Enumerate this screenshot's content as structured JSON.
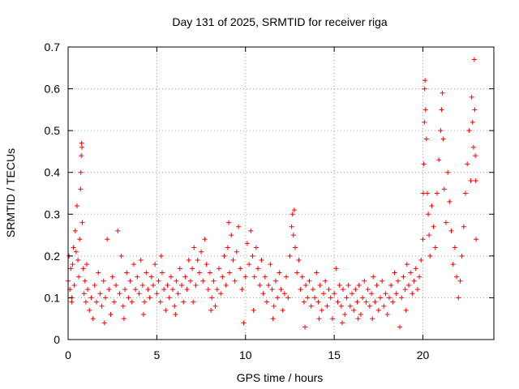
{
  "chart_data": {
    "type": "scatter",
    "title": "Day 131 of 2025, SRMTID for receiver riga",
    "xlabel": "GPS time / hours",
    "ylabel": "SRMTID / TECUs",
    "xlim": [
      0,
      24
    ],
    "ylim": [
      0,
      0.7
    ],
    "x_ticks": [
      0,
      5,
      10,
      15,
      20
    ],
    "x_tick_labels": [
      "0",
      "5",
      "10",
      "15",
      "20"
    ],
    "y_ticks": [
      0,
      0.1,
      0.2,
      0.3,
      0.4,
      0.5,
      0.6,
      0.7
    ],
    "y_tick_labels": [
      "0",
      "0.1",
      "0.2",
      "0.3",
      "0.4",
      "0.5",
      "0.6",
      "0.7"
    ],
    "grid": true,
    "marker": "+",
    "color": "#ff0000",
    "series": [
      {
        "name": "SRMTID",
        "points": [
          [
            0.0,
            0.14
          ],
          [
            0.05,
            0.2
          ],
          [
            0.1,
            0.12
          ],
          [
            0.15,
            0.17
          ],
          [
            0.2,
            0.1
          ],
          [
            0.25,
            0.18
          ],
          [
            0.3,
            0.22
          ],
          [
            0.35,
            0.13
          ],
          [
            0.4,
            0.26
          ],
          [
            0.45,
            0.21
          ],
          [
            0.5,
            0.32
          ],
          [
            0.55,
            0.19
          ],
          [
            0.6,
            0.15
          ],
          [
            0.65,
            0.24
          ],
          [
            0.7,
            0.36
          ],
          [
            0.72,
            0.4
          ],
          [
            0.74,
            0.44
          ],
          [
            0.76,
            0.47
          ],
          [
            0.78,
            0.46
          ],
          [
            0.8,
            0.28
          ],
          [
            0.85,
            0.17
          ],
          [
            0.9,
            0.11
          ],
          [
            0.95,
            0.14
          ],
          [
            1.0,
            0.09
          ],
          [
            1.1,
            0.12
          ],
          [
            1.2,
            0.07
          ],
          [
            1.3,
            0.1
          ],
          [
            1.4,
            0.05
          ],
          [
            1.5,
            0.13
          ],
          [
            1.6,
            0.09
          ],
          [
            1.7,
            0.16
          ],
          [
            1.8,
            0.11
          ],
          [
            1.9,
            0.08
          ],
          [
            2.0,
            0.14
          ],
          [
            2.1,
            0.1
          ],
          [
            2.2,
            0.24
          ],
          [
            2.3,
            0.12
          ],
          [
            2.4,
            0.06
          ],
          [
            2.5,
            0.15
          ],
          [
            2.6,
            0.09
          ],
          [
            2.7,
            0.13
          ],
          [
            2.8,
            0.26
          ],
          [
            2.9,
            0.11
          ],
          [
            3.0,
            0.2
          ],
          [
            3.1,
            0.08
          ],
          [
            3.2,
            0.12
          ],
          [
            3.3,
            0.16
          ],
          [
            3.4,
            0.1
          ],
          [
            3.5,
            0.14
          ],
          [
            3.6,
            0.09
          ],
          [
            3.7,
            0.18
          ],
          [
            3.8,
            0.12
          ],
          [
            3.9,
            0.15
          ],
          [
            4.0,
            0.11
          ],
          [
            4.1,
            0.19
          ],
          [
            4.2,
            0.13
          ],
          [
            4.3,
            0.09
          ],
          [
            4.4,
            0.16
          ],
          [
            4.5,
            0.12
          ],
          [
            4.6,
            0.1
          ],
          [
            4.7,
            0.15
          ],
          [
            4.8,
            0.13
          ],
          [
            4.9,
            0.18
          ],
          [
            5.0,
            0.11
          ],
          [
            5.1,
            0.14
          ],
          [
            5.2,
            0.09
          ],
          [
            5.3,
            0.16
          ],
          [
            5.4,
            0.12
          ],
          [
            5.5,
            0.07
          ],
          [
            5.6,
            0.13
          ],
          [
            5.7,
            0.1
          ],
          [
            5.8,
            0.15
          ],
          [
            5.9,
            0.12
          ],
          [
            6.0,
            0.08
          ],
          [
            6.1,
            0.14
          ],
          [
            6.2,
            0.11
          ],
          [
            6.3,
            0.17
          ],
          [
            6.4,
            0.13
          ],
          [
            6.5,
            0.09
          ],
          [
            6.6,
            0.15
          ],
          [
            6.7,
            0.12
          ],
          [
            6.8,
            0.19
          ],
          [
            6.9,
            0.14
          ],
          [
            7.0,
            0.17
          ],
          [
            7.1,
            0.22
          ],
          [
            7.2,
            0.13
          ],
          [
            7.3,
            0.19
          ],
          [
            7.4,
            0.16
          ],
          [
            7.5,
            0.21
          ],
          [
            7.6,
            0.14
          ],
          [
            7.7,
            0.24
          ],
          [
            7.8,
            0.18
          ],
          [
            7.9,
            0.12
          ],
          [
            8.0,
            0.16
          ],
          [
            8.1,
            0.1
          ],
          [
            8.2,
            0.14
          ],
          [
            8.3,
            0.08
          ],
          [
            8.4,
            0.12
          ],
          [
            8.5,
            0.17
          ],
          [
            8.6,
            0.11
          ],
          [
            8.7,
            0.15
          ],
          [
            8.8,
            0.2
          ],
          [
            8.9,
            0.13
          ],
          [
            9.0,
            0.22
          ],
          [
            9.05,
            0.28
          ],
          [
            9.1,
            0.16
          ],
          [
            9.2,
            0.25
          ],
          [
            9.3,
            0.19
          ],
          [
            9.4,
            0.14
          ],
          [
            9.5,
            0.21
          ],
          [
            9.6,
            0.27
          ],
          [
            9.7,
            0.17
          ],
          [
            9.8,
            0.12
          ],
          [
            9.9,
            0.04
          ],
          [
            10.0,
            0.15
          ],
          [
            10.1,
            0.23
          ],
          [
            10.2,
            0.18
          ],
          [
            10.3,
            0.26
          ],
          [
            10.4,
            0.2
          ],
          [
            10.5,
            0.15
          ],
          [
            10.6,
            0.22
          ],
          [
            10.7,
            0.17
          ],
          [
            10.8,
            0.13
          ],
          [
            10.9,
            0.19
          ],
          [
            11.0,
            0.11
          ],
          [
            11.1,
            0.15
          ],
          [
            11.2,
            0.09
          ],
          [
            11.3,
            0.13
          ],
          [
            11.4,
            0.18
          ],
          [
            11.5,
            0.12
          ],
          [
            11.6,
            0.08
          ],
          [
            11.7,
            0.14
          ],
          [
            11.8,
            0.1
          ],
          [
            11.9,
            0.16
          ],
          [
            12.0,
            0.12
          ],
          [
            12.1,
            0.07
          ],
          [
            12.2,
            0.11
          ],
          [
            12.3,
            0.15
          ],
          [
            12.4,
            0.1
          ],
          [
            12.5,
            0.2
          ],
          [
            12.6,
            0.27
          ],
          [
            12.65,
            0.3
          ],
          [
            12.7,
            0.25
          ],
          [
            12.75,
            0.31
          ],
          [
            12.8,
            0.22
          ],
          [
            12.9,
            0.16
          ],
          [
            13.0,
            0.19
          ],
          [
            13.1,
            0.12
          ],
          [
            13.2,
            0.15
          ],
          [
            13.3,
            0.09
          ],
          [
            13.4,
            0.13
          ],
          [
            13.5,
            0.1
          ],
          [
            13.6,
            0.14
          ],
          [
            13.7,
            0.08
          ],
          [
            13.8,
            0.12
          ],
          [
            13.9,
            0.1
          ],
          [
            14.0,
            0.16
          ],
          [
            14.1,
            0.09
          ],
          [
            14.2,
            0.13
          ],
          [
            14.3,
            0.07
          ],
          [
            14.4,
            0.11
          ],
          [
            14.5,
            0.14
          ],
          [
            14.6,
            0.08
          ],
          [
            14.7,
            0.12
          ],
          [
            14.8,
            0.1
          ],
          [
            14.9,
            0.05
          ],
          [
            15.0,
            0.11
          ],
          [
            15.1,
            0.17
          ],
          [
            15.2,
            0.09
          ],
          [
            15.3,
            0.13
          ],
          [
            15.4,
            0.08
          ],
          [
            15.5,
            0.12
          ],
          [
            15.6,
            0.06
          ],
          [
            15.7,
            0.1
          ],
          [
            15.8,
            0.13
          ],
          [
            15.9,
            0.08
          ],
          [
            16.0,
            0.11
          ],
          [
            16.1,
            0.07
          ],
          [
            16.2,
            0.12
          ],
          [
            16.3,
            0.09
          ],
          [
            16.4,
            0.13
          ],
          [
            16.5,
            0.06
          ],
          [
            16.6,
            0.1
          ],
          [
            16.7,
            0.14
          ],
          [
            16.8,
            0.09
          ],
          [
            16.9,
            0.12
          ],
          [
            17.0,
            0.08
          ],
          [
            17.1,
            0.11
          ],
          [
            17.2,
            0.15
          ],
          [
            17.3,
            0.09
          ],
          [
            17.4,
            0.13
          ],
          [
            17.5,
            0.07
          ],
          [
            17.6,
            0.1
          ],
          [
            17.7,
            0.14
          ],
          [
            17.8,
            0.08
          ],
          [
            17.9,
            0.11
          ],
          [
            18.0,
            0.06
          ],
          [
            18.1,
            0.1
          ],
          [
            18.2,
            0.13
          ],
          [
            18.3,
            0.09
          ],
          [
            18.4,
            0.16
          ],
          [
            18.5,
            0.11
          ],
          [
            18.6,
            0.14
          ],
          [
            18.7,
            0.03
          ],
          [
            18.8,
            0.1
          ],
          [
            18.9,
            0.15
          ],
          [
            19.0,
            0.12
          ],
          [
            19.1,
            0.18
          ],
          [
            19.2,
            0.13
          ],
          [
            19.3,
            0.16
          ],
          [
            19.4,
            0.11
          ],
          [
            19.5,
            0.14
          ],
          [
            19.6,
            0.17
          ],
          [
            19.7,
            0.12
          ],
          [
            19.8,
            0.15
          ],
          [
            19.9,
            0.19
          ],
          [
            20.0,
            0.24
          ],
          [
            20.02,
            0.35
          ],
          [
            20.05,
            0.42
          ],
          [
            20.08,
            0.52
          ],
          [
            20.1,
            0.6
          ],
          [
            20.12,
            0.62
          ],
          [
            20.15,
            0.55
          ],
          [
            20.2,
            0.48
          ],
          [
            20.25,
            0.35
          ],
          [
            20.3,
            0.3
          ],
          [
            20.35,
            0.25
          ],
          [
            20.4,
            0.2
          ],
          [
            20.5,
            0.32
          ],
          [
            20.6,
            0.27
          ],
          [
            20.7,
            0.22
          ],
          [
            20.8,
            0.35
          ],
          [
            20.9,
            0.43
          ],
          [
            21.0,
            0.5
          ],
          [
            21.05,
            0.55
          ],
          [
            21.1,
            0.59
          ],
          [
            21.15,
            0.48
          ],
          [
            21.2,
            0.36
          ],
          [
            21.3,
            0.28
          ],
          [
            21.4,
            0.4
          ],
          [
            21.5,
            0.33
          ],
          [
            21.6,
            0.26
          ],
          [
            21.7,
            0.18
          ],
          [
            21.8,
            0.22
          ],
          [
            21.9,
            0.15
          ],
          [
            22.0,
            0.1
          ],
          [
            22.1,
            0.14
          ],
          [
            22.2,
            0.2
          ],
          [
            22.3,
            0.27
          ],
          [
            22.4,
            0.35
          ],
          [
            22.5,
            0.42
          ],
          [
            22.6,
            0.5
          ],
          [
            22.7,
            0.38
          ],
          [
            22.75,
            0.58
          ],
          [
            22.8,
            0.52
          ],
          [
            22.85,
            0.46
          ],
          [
            22.9,
            0.67
          ],
          [
            22.92,
            0.55
          ],
          [
            22.95,
            0.44
          ],
          [
            22.98,
            0.38
          ],
          [
            23.0,
            0.24
          ],
          [
            0.2,
            0.09
          ],
          [
            1.05,
            0.18
          ],
          [
            2.05,
            0.04
          ],
          [
            3.15,
            0.05
          ],
          [
            4.25,
            0.06
          ],
          [
            5.25,
            0.2
          ],
          [
            6.05,
            0.06
          ],
          [
            7.05,
            0.09
          ],
          [
            8.05,
            0.07
          ],
          [
            10.45,
            0.07
          ],
          [
            11.55,
            0.05
          ],
          [
            13.35,
            0.03
          ],
          [
            14.15,
            0.05
          ],
          [
            15.45,
            0.04
          ],
          [
            16.35,
            0.05
          ],
          [
            17.15,
            0.05
          ],
          [
            19.05,
            0.07
          ]
        ]
      }
    ]
  }
}
